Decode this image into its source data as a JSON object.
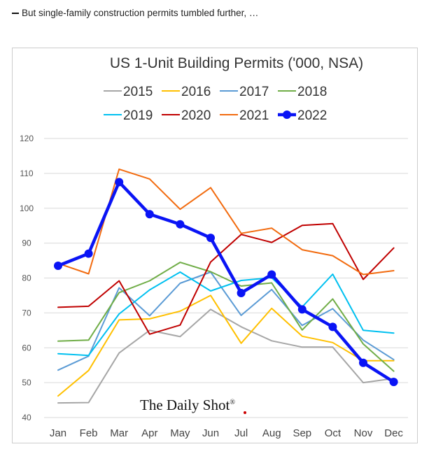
{
  "caption": "But single-family construction permits tumbled further, …",
  "watermark": {
    "text": "The Daily Shot",
    "registered": "®",
    "dot_color": "#cc0000"
  },
  "chart_data": {
    "type": "line",
    "title": "US 1-Unit Building Permits ('000, NSA)",
    "xlabel": "",
    "ylabel": "",
    "categories": [
      "Jan",
      "Feb",
      "Mar",
      "Apr",
      "May",
      "Jun",
      "Jul",
      "Aug",
      "Sep",
      "Oct",
      "Nov",
      "Dec"
    ],
    "ylim": [
      40,
      120
    ],
    "yticks": [
      40,
      50,
      60,
      70,
      80,
      90,
      100,
      110,
      120
    ],
    "grid": "horizontal",
    "legend": "top",
    "series": [
      {
        "name": "2015",
        "color": "#a6a6a6",
        "width": 2,
        "markers": false,
        "values": [
          44.2,
          44.3,
          58.5,
          65.0,
          63.2,
          71.0,
          66.0,
          62.0,
          60.2,
          60.2,
          50.0,
          51.2
        ]
      },
      {
        "name": "2016",
        "color": "#ffc000",
        "width": 2,
        "markers": false,
        "values": [
          46.2,
          53.5,
          68.0,
          68.3,
          70.5,
          75.0,
          61.3,
          71.3,
          63.3,
          61.5,
          56.3,
          56.3
        ]
      },
      {
        "name": "2017",
        "color": "#5b9bd5",
        "width": 2,
        "markers": false,
        "values": [
          53.6,
          57.6,
          77.2,
          69.2,
          78.5,
          81.7,
          69.3,
          76.7,
          66.4,
          71.2,
          62.2,
          56.6
        ]
      },
      {
        "name": "2018",
        "color": "#70ad47",
        "width": 2,
        "markers": false,
        "values": [
          61.9,
          62.2,
          75.8,
          79.2,
          84.5,
          81.8,
          77.7,
          78.6,
          65.1,
          74.0,
          61.1,
          53.3
        ]
      },
      {
        "name": "2019",
        "color": "#00c0f0",
        "width": 2,
        "markers": false,
        "values": [
          58.3,
          57.8,
          69.7,
          76.6,
          81.7,
          76.3,
          79.3,
          80.1,
          71.7,
          81.1,
          65.0,
          64.2
        ]
      },
      {
        "name": "2020",
        "color": "#c00000",
        "width": 2,
        "markers": false,
        "values": [
          71.6,
          71.9,
          79.2,
          63.9,
          66.5,
          84.6,
          92.5,
          90.2,
          95.1,
          95.6,
          79.6,
          88.6
        ]
      },
      {
        "name": "2021",
        "color": "#f26b0f",
        "width": 2,
        "markers": false,
        "values": [
          84.2,
          81.2,
          111.2,
          108.4,
          99.7,
          105.9,
          92.8,
          94.3,
          88.1,
          86.4,
          81.0,
          82.1
        ]
      },
      {
        "name": "2022",
        "color": "#0a14f5",
        "width": 4.5,
        "markers": true,
        "values": [
          83.5,
          87.0,
          107.5,
          98.3,
          95.4,
          91.5,
          75.7,
          81.0,
          71.0,
          66.0,
          55.7,
          50.2
        ]
      }
    ]
  }
}
